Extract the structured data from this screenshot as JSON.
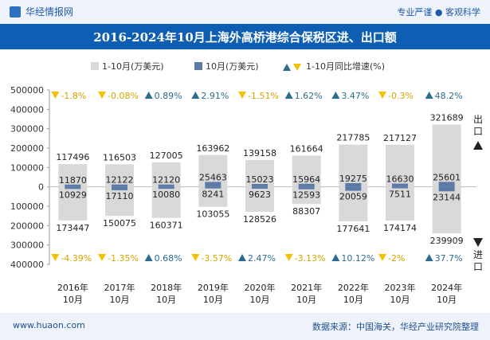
{
  "header": {
    "brand": "华经情报网",
    "slogan": "专业严谨 ● 客观科学"
  },
  "footer": {
    "website": "www.huaon.com",
    "source": "数据来源：中国海关，华经产业研究院整理"
  },
  "colors": {
    "bar_cumulative": "#d9d9d9",
    "bar_monthly": "#5b7aa6",
    "up_marker": "#2e6b8e",
    "down_marker": "#f2c200",
    "title_band": "#0e5fb4"
  },
  "side_labels": {
    "export": "出口",
    "import": "进口"
  },
  "chart_data": {
    "type": "bar",
    "title": "2016-2024年10月上海外高桥港综合保税区进、出口额",
    "categories": [
      "2016年\n10月",
      "2017年\n10月",
      "2018年\n10月",
      "2019年\n10月",
      "2020年\n10月",
      "2021年\n10月",
      "2022年\n10月",
      "2023年\n10月",
      "2024年\n10月"
    ],
    "ylim": [
      -400000,
      500000
    ],
    "yticks": [
      -400000,
      -300000,
      -200000,
      -100000,
      0,
      100000,
      200000,
      300000,
      400000,
      500000
    ],
    "ytick_labels": [
      "400000",
      "300000",
      "200000",
      "100000",
      "0",
      "100000",
      "200000",
      "300000",
      "400000",
      "500000"
    ],
    "legend": [
      "1-10月(万美元)",
      "10月(万美元)",
      "1-10月同比增速(%)"
    ],
    "series": [
      {
        "name": "1-10月(万美元)",
        "group": "出口",
        "values": [
          117496,
          116503,
          127005,
          163962,
          139158,
          161664,
          217785,
          217127,
          321689
        ]
      },
      {
        "name": "10月(万美元)",
        "group": "出口",
        "values": [
          11870,
          12122,
          12120,
          25463,
          15023,
          15964,
          19275,
          16630,
          25601
        ]
      },
      {
        "name": "1-10月(万美元)",
        "group": "进口",
        "values": [
          -173447,
          -150075,
          -160371,
          -103055,
          -128526,
          -88307,
          -177641,
          -174174,
          -239909
        ]
      },
      {
        "name": "10月(万美元)",
        "group": "进口",
        "values": [
          -10929,
          -17110,
          -10080,
          -8241,
          -9623,
          -12593,
          -20059,
          -7511,
          -23144
        ]
      }
    ],
    "value_labels": {
      "export_cum": [
        "117496",
        "116503",
        "127005",
        "163962",
        "139158",
        "161664",
        "217785",
        "217127",
        "321689"
      ],
      "export_month": [
        "11870",
        "12122",
        "12120",
        "25463",
        "15023",
        "15964",
        "19275",
        "16630",
        "25601"
      ],
      "import_cum": [
        "173447",
        "150075",
        "160371",
        "103055",
        "128526",
        "88307",
        "177641",
        "174174",
        "239909"
      ],
      "import_month": [
        "10929",
        "17110",
        "10080",
        "8241",
        "9623",
        "12593",
        "20059",
        "7511",
        "23144"
      ]
    },
    "growth_export": [
      -1.8,
      -0.08,
      0.89,
      2.91,
      -1.51,
      1.62,
      3.47,
      -0.3,
      48.2
    ],
    "growth_export_labels": [
      "-1.8%",
      "-0.08%",
      "0.89%",
      "2.91%",
      "-1.51%",
      "1.62%",
      "3.47%",
      "-0.3%",
      "48.2%"
    ],
    "growth_import": [
      -4.39,
      -1.35,
      0.68,
      -3.57,
      2.47,
      -3.13,
      10.12,
      -2,
      37.7
    ],
    "growth_import_labels": [
      "-4.39%",
      "-1.35%",
      "0.68%",
      "-3.57%",
      "2.47%",
      "-3.13%",
      "10.12%",
      "-2%",
      "37.7%"
    ]
  }
}
